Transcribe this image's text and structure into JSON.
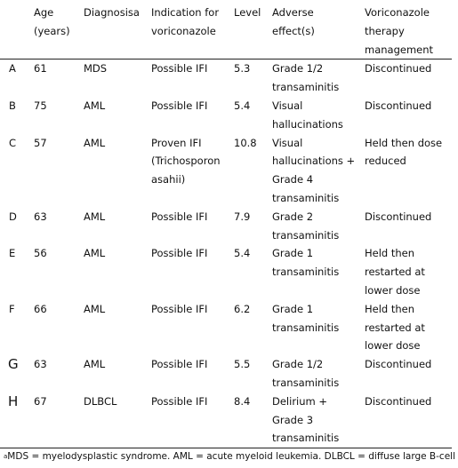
{
  "table": {
    "headers": {
      "id": "",
      "age": "Age (years)",
      "diagnosis": "Diagnosisa",
      "indication": "Indication for voriconazole",
      "level": "Level",
      "adverse": "Adverse effect(s)",
      "management": "Voriconazole therapy management"
    },
    "rows": [
      {
        "id": "A",
        "age": "61",
        "diagnosis": "MDS",
        "indication": "Possible IFI",
        "level": "5.3",
        "adverse": "Grade 1/2 transaminitis",
        "management": "Discontinued"
      },
      {
        "id": "B",
        "age": "75",
        "diagnosis": "AML",
        "indication": "Possible IFI",
        "level": "5.4",
        "adverse": "Visual hallucinations",
        "management": "Discontinued"
      },
      {
        "id": "C",
        "age": "57",
        "diagnosis": "AML",
        "indication": "Proven IFI (Trichosporon asahii)",
        "level": "10.8",
        "adverse": "Visual hallucinations + Grade 4 transaminitis",
        "management": "Held then dose reduced"
      },
      {
        "id": "D",
        "age": "63",
        "diagnosis": "AML",
        "indication": "Possible IFI",
        "level": "7.9",
        "adverse": "Grade 2 transaminitis",
        "management": "Discontinued"
      },
      {
        "id": "E",
        "age": "56",
        "diagnosis": "AML",
        "indication": "Possible IFI",
        "level": "5.4",
        "adverse": "Grade 1 transaminitis",
        "management": "Held then restarted at lower dose"
      },
      {
        "id": "F",
        "age": "66",
        "diagnosis": "AML",
        "indication": "Possible IFI",
        "level": "6.2",
        "adverse": "Grade 1 transaminitis",
        "management": "Held then restarted at lower dose"
      },
      {
        "id": "G",
        "age": "63",
        "diagnosis": "AML",
        "indication": "Possible IFI",
        "level": "5.5",
        "adverse": "Grade 1/2 transaminitis",
        "management": "Discontinued"
      },
      {
        "id": "H",
        "age": "67",
        "diagnosis": "DLBCL",
        "indication": "Possible IFI",
        "level": "8.4",
        "adverse": "Delirium + Grade 3 transaminitis",
        "management": "Discontinued"
      }
    ]
  },
  "footnote": {
    "marker": "a",
    "text": "MDS = myelodysplastic syndrome.  AML = acute myeloid leukemia.  DLBCL = diffuse large B-cell"
  }
}
